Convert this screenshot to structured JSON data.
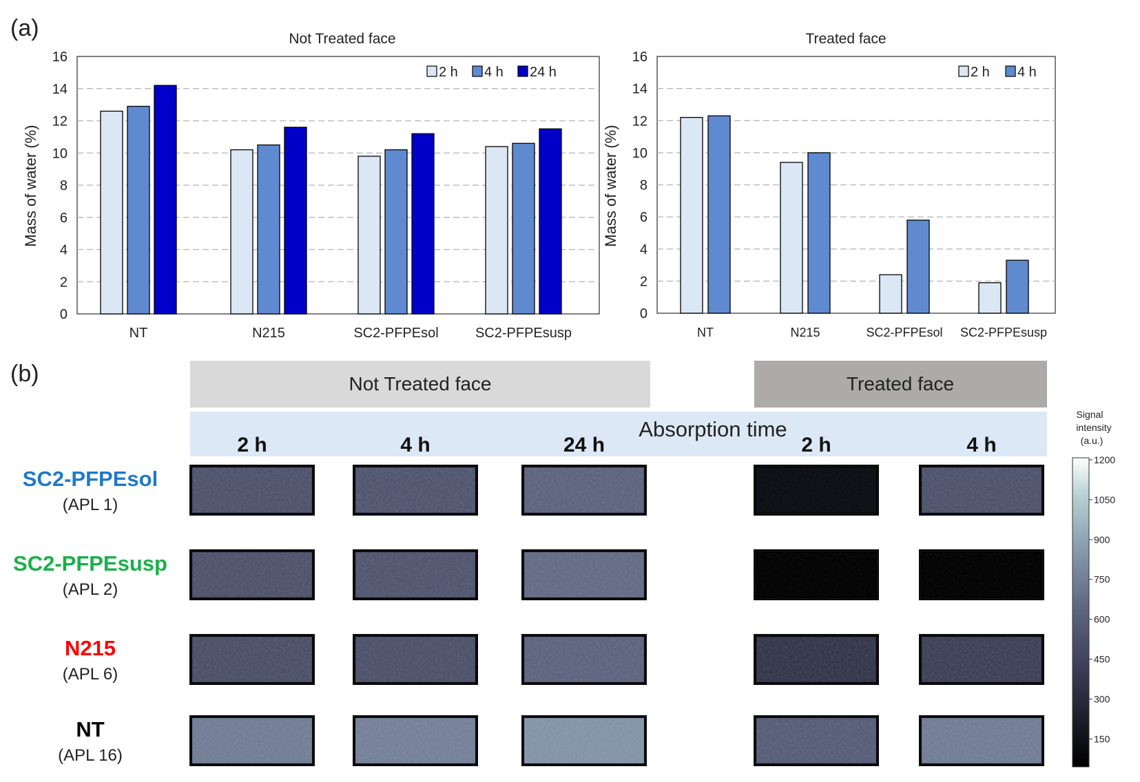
{
  "panel_labels": {
    "a": "(a)",
    "b": "(b)"
  },
  "colors": {
    "light": "#dbe7f5",
    "mid": "#5f8ad0",
    "dark": "#0000c8",
    "grid": "#b3b3b3",
    "header_not_treated": "#d9d9d9",
    "header_treated": "#aeaaaa",
    "absorption_band": "#dce8f5",
    "label_sol": "#1f7ac7",
    "label_susp": "#19b04a",
    "label_n215": "#ff0000",
    "label_nt": "#000000"
  },
  "chart_data": [
    {
      "type": "bar",
      "title": "Not Treated face",
      "xlabel": "",
      "ylabel": "Mass of water (%)",
      "ylim": [
        0,
        16
      ],
      "yticks": [
        "0",
        "2",
        "4",
        "6",
        "8",
        "10",
        "12",
        "14",
        "16"
      ],
      "categories": [
        "NT",
        "N215",
        "SC2-PFPEsol",
        "SC2-PFPEsusp"
      ],
      "legend_position": "top-right",
      "series": [
        {
          "name": "2 h",
          "color_key": "light",
          "values": [
            12.6,
            10.2,
            9.8,
            10.4
          ]
        },
        {
          "name": "4 h",
          "color_key": "mid",
          "values": [
            12.9,
            10.5,
            10.2,
            10.6
          ]
        },
        {
          "name": "24 h",
          "color_key": "dark",
          "values": [
            14.2,
            11.6,
            11.2,
            11.5
          ]
        }
      ]
    },
    {
      "type": "bar",
      "title": "Treated face",
      "xlabel": "",
      "ylabel": "Mass of water (%)",
      "ylim": [
        0,
        16
      ],
      "yticks": [
        "0",
        "2",
        "4",
        "6",
        "8",
        "10",
        "12",
        "14",
        "16"
      ],
      "categories": [
        "NT",
        "N215",
        "SC2-PFPEsol",
        "SC2-PFPEsusp"
      ],
      "legend_position": "top-right",
      "series": [
        {
          "name": "2 h",
          "color_key": "light",
          "values": [
            12.2,
            9.4,
            2.4,
            1.9
          ]
        },
        {
          "name": "4 h",
          "color_key": "mid",
          "values": [
            12.3,
            10.0,
            5.8,
            3.3
          ]
        }
      ]
    }
  ],
  "panel_b": {
    "header_not_treated": "Not Treated face",
    "header_treated": "Treated face",
    "absorption_time": "Absorption time",
    "time_labels": [
      "2 h",
      "4 h",
      "24 h",
      "2 h",
      "4 h"
    ],
    "rows": [
      {
        "name": "SC2-PFPEsol",
        "apl": "(APL 1)",
        "color_key": "label_sol",
        "intensities": [
          500,
          520,
          600,
          120,
          500
        ]
      },
      {
        "name": "SC2-PFPEsusp",
        "apl": "(APL 2)",
        "color_key": "label_susp",
        "intensities": [
          500,
          520,
          640,
          40,
          50
        ]
      },
      {
        "name": "N215",
        "apl": "(APL 6)",
        "color_key": "label_n215",
        "intensities": [
          480,
          490,
          600,
          330,
          390
        ]
      },
      {
        "name": "NT",
        "apl": "(APL 16)",
        "color_key": "label_nt",
        "intensities": [
          720,
          740,
          820,
          560,
          720
        ]
      }
    ],
    "colorbar": {
      "title_lines": [
        "Signal",
        "intensity",
        "(a.u.)"
      ],
      "min": 50,
      "max": 1200,
      "ticks": [
        "1200",
        "1050",
        "900",
        "750",
        "600",
        "450",
        "300",
        "150"
      ]
    }
  }
}
